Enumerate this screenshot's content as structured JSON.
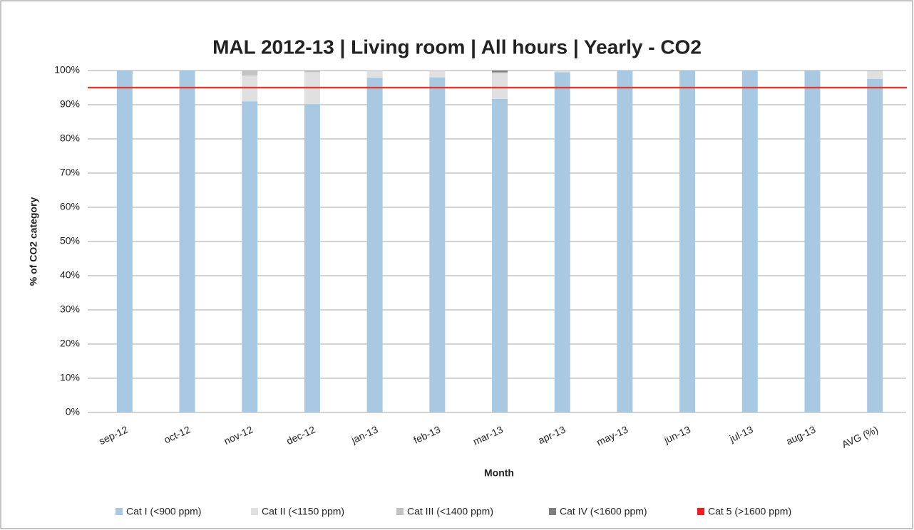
{
  "chart_data": {
    "type": "stacked_bar",
    "title": "MAL 2012-13 | Living room | All hours | Yearly - CO2",
    "x_label": "Month",
    "y_label": "% of CO2 category",
    "categories": [
      "sep-12",
      "oct-12",
      "nov-12",
      "dec-12",
      "jan-13",
      "feb-13",
      "mar-13",
      "apr-13",
      "may-13",
      "jun-13",
      "jul-13",
      "aug-13",
      "AVG (%)"
    ],
    "series": [
      {
        "name": "Cat I (<900 ppm)",
        "color": "#a9c9e3",
        "values": [
          100,
          100,
          91,
          90.2,
          97.9,
          98,
          91.7,
          99.5,
          100,
          100,
          100,
          100,
          97.5
        ]
      },
      {
        "name": "Cat II (<1150 ppm)",
        "color": "#e0e0e0",
        "values": [
          0,
          0,
          7.5,
          9.3,
          2.1,
          2,
          7.5,
          0.5,
          0,
          0,
          0,
          0,
          2.3
        ]
      },
      {
        "name": "Cat III (<1400 ppm)",
        "color": "#c3c3c3",
        "values": [
          0,
          0,
          1.5,
          0.5,
          0,
          0,
          0.3,
          0,
          0,
          0,
          0,
          0,
          0.2
        ]
      },
      {
        "name": "Cat IV (<1600 ppm)",
        "color": "#7f7f7f",
        "values": [
          0,
          0,
          0,
          0,
          0,
          0,
          0.5,
          0,
          0,
          0,
          0,
          0,
          0
        ]
      },
      {
        "name": "Cat 5 (>1600 ppm)",
        "color": "#ee1c25",
        "values": [
          0,
          0,
          0,
          0,
          0,
          0,
          0,
          0,
          0,
          0,
          0,
          0,
          0
        ]
      }
    ],
    "threshold": 95,
    "threshold_color": "#d9403a",
    "ylim": [
      0,
      100
    ],
    "yticks": [
      {
        "value": 0,
        "label": "0%"
      },
      {
        "value": 10,
        "label": "10%"
      },
      {
        "value": 20,
        "label": "20%"
      },
      {
        "value": 30,
        "label": "30%"
      },
      {
        "value": 40,
        "label": "40%"
      },
      {
        "value": 50,
        "label": "50%"
      },
      {
        "value": 60,
        "label": "60%"
      },
      {
        "value": 70,
        "label": "70%"
      },
      {
        "value": 80,
        "label": "80%"
      },
      {
        "value": 90,
        "label": "90%"
      },
      {
        "value": 100,
        "label": "100%"
      }
    ],
    "grid": true
  }
}
